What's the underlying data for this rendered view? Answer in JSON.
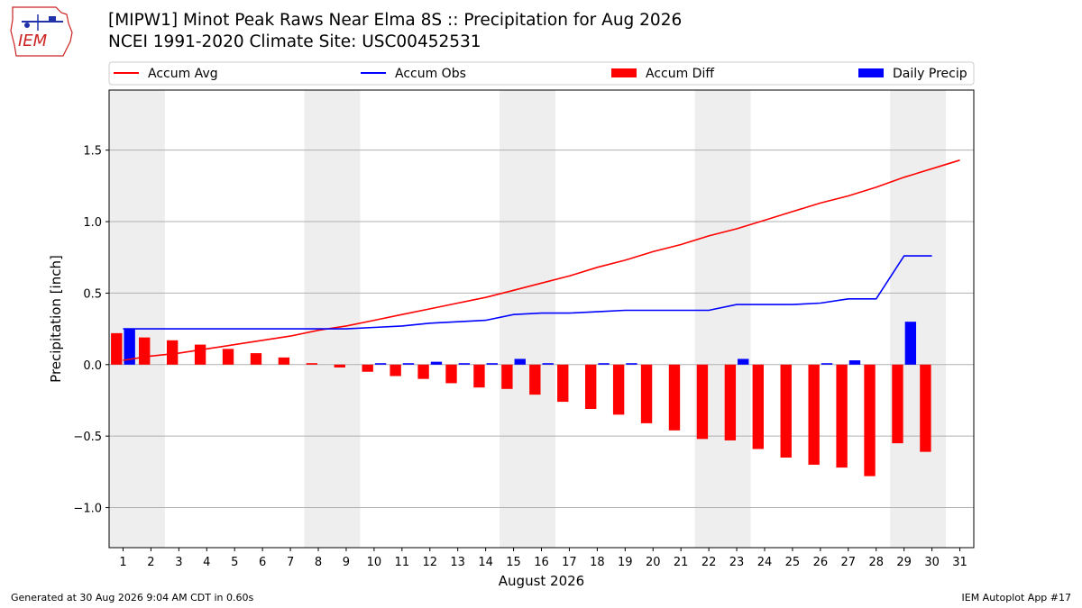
{
  "header": {
    "title_line1": "[MIPW1] Minot Peak Raws Near Elma 8S :: Precipitation for Aug 2026",
    "title_line2": "NCEI 1991-2020 Climate Site: USC00452531",
    "logo_text": "IEM"
  },
  "footer": {
    "generated": "Generated at 30 Aug 2026 9:04 AM CDT in 0.60s",
    "app": "IEM Autoplot App #17"
  },
  "colors": {
    "accum_avg": "#ff0000",
    "accum_obs": "#0000ff",
    "accum_diff": "#ff0000",
    "daily_precip": "#0000ff",
    "weekend_shade": "#eeeeee",
    "grid": "#b0b0b0"
  },
  "chart_data": {
    "type": "bar",
    "title": "[MIPW1] Minot Peak Raws Near Elma 8S :: Precipitation for Aug 2026",
    "xlabel": "August 2026",
    "ylabel": "Precipitation [inch]",
    "xlim": [
      0.5,
      31.5
    ],
    "ylim": [
      -1.28,
      1.92
    ],
    "yticks": [
      -1.0,
      -0.5,
      0.0,
      0.5,
      1.0,
      1.5
    ],
    "ytick_labels": [
      "−1.0",
      "−0.5",
      "0.0",
      "0.5",
      "1.0",
      "1.5"
    ],
    "xticks": [
      1,
      2,
      3,
      4,
      5,
      6,
      7,
      8,
      9,
      10,
      11,
      12,
      13,
      14,
      15,
      16,
      17,
      18,
      19,
      20,
      21,
      22,
      23,
      24,
      25,
      26,
      27,
      28,
      29,
      30,
      31
    ],
    "grid": "horizontal",
    "legend_placement": "top",
    "shaded_day_ranges": [
      [
        1,
        2
      ],
      [
        8,
        9
      ],
      [
        15,
        16
      ],
      [
        22,
        23
      ],
      [
        29,
        30
      ]
    ],
    "series": [
      {
        "name": "Accum Avg",
        "kind": "line",
        "x": [
          1,
          2,
          3,
          4,
          5,
          6,
          7,
          8,
          9,
          10,
          11,
          12,
          13,
          14,
          15,
          16,
          17,
          18,
          19,
          20,
          21,
          22,
          23,
          24,
          25,
          26,
          27,
          28,
          29,
          30,
          31
        ],
        "values": [
          0.03,
          0.06,
          0.08,
          0.11,
          0.14,
          0.17,
          0.2,
          0.24,
          0.27,
          0.31,
          0.35,
          0.39,
          0.43,
          0.47,
          0.52,
          0.57,
          0.62,
          0.68,
          0.73,
          0.79,
          0.84,
          0.9,
          0.95,
          1.01,
          1.07,
          1.13,
          1.18,
          1.24,
          1.31,
          1.37,
          1.43
        ]
      },
      {
        "name": "Accum Obs",
        "kind": "line",
        "x": [
          1,
          2,
          3,
          4,
          5,
          6,
          7,
          8,
          9,
          10,
          11,
          12,
          13,
          14,
          15,
          16,
          17,
          18,
          19,
          20,
          21,
          22,
          23,
          24,
          25,
          26,
          27,
          28,
          29,
          30
        ],
        "values": [
          0.25,
          0.25,
          0.25,
          0.25,
          0.25,
          0.25,
          0.25,
          0.25,
          0.25,
          0.26,
          0.27,
          0.29,
          0.3,
          0.31,
          0.35,
          0.36,
          0.36,
          0.37,
          0.38,
          0.38,
          0.38,
          0.38,
          0.42,
          0.42,
          0.42,
          0.43,
          0.46,
          0.46,
          0.76,
          0.76
        ]
      },
      {
        "name": "Accum Diff",
        "kind": "bar",
        "x": [
          1,
          2,
          3,
          4,
          5,
          6,
          7,
          8,
          9,
          10,
          11,
          12,
          13,
          14,
          15,
          16,
          17,
          18,
          19,
          20,
          21,
          22,
          23,
          24,
          25,
          26,
          27,
          28,
          29,
          30
        ],
        "values": [
          0.22,
          0.19,
          0.17,
          0.14,
          0.11,
          0.08,
          0.05,
          0.01,
          -0.02,
          -0.05,
          -0.08,
          -0.1,
          -0.13,
          -0.16,
          -0.17,
          -0.21,
          -0.26,
          -0.31,
          -0.35,
          -0.41,
          -0.46,
          -0.52,
          -0.53,
          -0.59,
          -0.65,
          -0.7,
          -0.72,
          -0.78,
          -0.55,
          -0.61
        ]
      },
      {
        "name": "Daily Precip",
        "kind": "bar",
        "x": [
          1,
          2,
          3,
          4,
          5,
          6,
          7,
          8,
          9,
          10,
          11,
          12,
          13,
          14,
          15,
          16,
          17,
          18,
          19,
          20,
          21,
          22,
          23,
          24,
          25,
          26,
          27,
          28,
          29,
          30
        ],
        "values": [
          0.25,
          0,
          0,
          0,
          0,
          0,
          0,
          0,
          0,
          0.01,
          0.01,
          0.02,
          0.01,
          0.01,
          0.04,
          0.01,
          0,
          0.01,
          0.01,
          0,
          0,
          0,
          0.04,
          0,
          0,
          0.01,
          0.03,
          0,
          0.3,
          0
        ]
      }
    ]
  }
}
